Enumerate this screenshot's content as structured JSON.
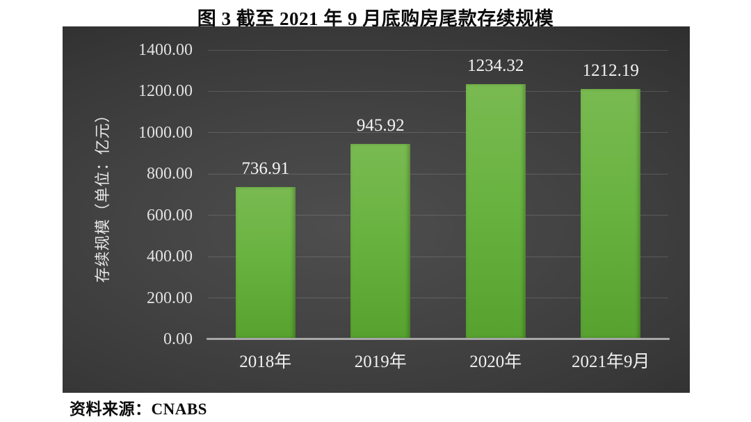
{
  "title": {
    "text": "图 3  截至 2021 年 9 月底购房尾款存续规模"
  },
  "source": {
    "text": "资料来源：CNABS"
  },
  "chart_data": {
    "type": "bar",
    "title": "图 3  截至 2021 年 9 月底购房尾款存续规模",
    "categories": [
      "2018年",
      "2019年",
      "2020年",
      "2021年9月"
    ],
    "values": [
      736.91,
      945.92,
      1234.32,
      1212.19
    ],
    "data_labels": [
      "736.91",
      "945.92",
      "1234.32",
      "1212.19"
    ],
    "xlabel": "",
    "ylabel": "存续规模（单位：亿元）",
    "ylim": [
      0,
      1400
    ],
    "ytick_step": 200,
    "ytick_labels": [
      "0.00",
      "200.00",
      "400.00",
      "600.00",
      "800.00",
      "1000.00",
      "1200.00",
      "1400.00"
    ],
    "grid": true,
    "legend_position": "none",
    "colors": {
      "bar_top": "#79ba51",
      "bar_bottom": "#57a22f",
      "plot_bg_center": "#4e4e4e",
      "plot_bg_edge": "#1e1e1e",
      "gridline": "#5f5f5f",
      "axis_line": "#a8a8a8",
      "tick_text": "#e2e2e2",
      "data_label_text": "#f4f4f4",
      "title_text": "#0b0b0b"
    }
  }
}
